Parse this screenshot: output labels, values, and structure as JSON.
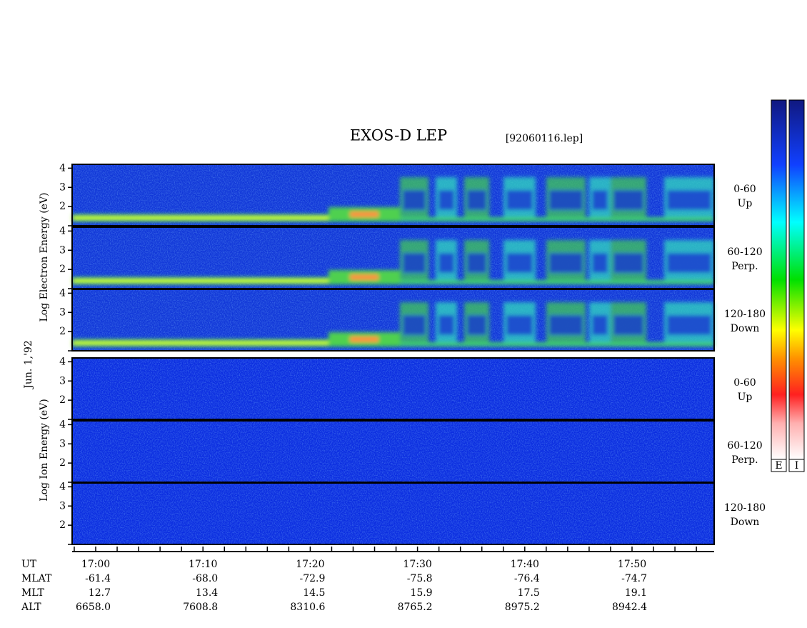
{
  "chart_data": {
    "type": "spectrogram",
    "title": "EXOS-D LEP",
    "file": "[92060116.lep]",
    "date_label": "Jun. 1,'92",
    "groups": [
      {
        "ylabel": "Log  Electron  Energy  (eV)",
        "kind": "electron"
      },
      {
        "ylabel": "Log   Ion   Energy  (eV)",
        "kind": "ion"
      }
    ],
    "panels": [
      {
        "group": 0,
        "pitch": [
          "0-60",
          "Up"
        ]
      },
      {
        "group": 0,
        "pitch": [
          "60-120",
          "Perp."
        ]
      },
      {
        "group": 0,
        "pitch": [
          "120-180",
          "Down"
        ]
      },
      {
        "group": 1,
        "pitch": [
          "0-60",
          "Up"
        ]
      },
      {
        "group": 1,
        "pitch": [
          "60-120",
          "Perp."
        ]
      },
      {
        "group": 1,
        "pitch": [
          "120-180",
          "Down"
        ]
      }
    ],
    "ylim": [
      1,
      4.2
    ],
    "yticks": [
      2,
      3,
      4
    ],
    "minor_yticks": [
      1
    ],
    "rows": [
      {
        "name": "UT",
        "values": [
          "17:00",
          "17:10",
          "17:20",
          "17:30",
          "17:40",
          "17:50"
        ]
      },
      {
        "name": "MLAT",
        "values": [
          "-61.4",
          "-68.0",
          "-72.9",
          "-75.8",
          "-76.4",
          "-74.7"
        ]
      },
      {
        "name": "MLT",
        "values": [
          "12.7",
          "13.4",
          "14.5",
          "15.9",
          "17.5",
          "19.1"
        ]
      },
      {
        "name": "ALT",
        "values": [
          "6658.0",
          "7608.8",
          "8310.6",
          "8765.2",
          "8975.2",
          "8942.4"
        ]
      }
    ],
    "colorbars": [
      "E",
      "I"
    ]
  }
}
